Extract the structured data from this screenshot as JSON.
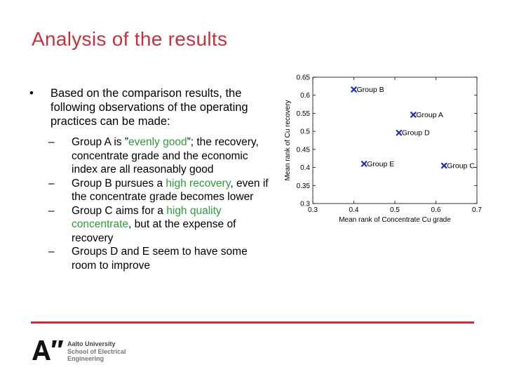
{
  "slide": {
    "title": "Analysis of the results",
    "bullet": {
      "symbol": "•",
      "text": "Based on the comparison results, the following observations of the operating practices can be made:"
    },
    "sub_items": [
      {
        "dash": "–",
        "before": "Group A is ”",
        "highlight": "evenly good",
        "after": "”; the recovery, concentrate grade and the economic index are all reasonably good"
      },
      {
        "dash": "–",
        "before": "Group B pursues a ",
        "highlight": "high recovery",
        "after": ", even if the concentrate grade becomes lower"
      },
      {
        "dash": "–",
        "before": "Group C aims for a ",
        "highlight": "high quality concentrate",
        "after": ", but at the expense of recovery"
      },
      {
        "dash": "–",
        "before": "Groups D and E seem to have some room to improve",
        "highlight": "",
        "after": ""
      }
    ],
    "colors": {
      "title": "#c8313c",
      "highlight": "#2e9b3a",
      "divider": "#c8313c",
      "marker": "#1f2fb5"
    }
  },
  "chart_data": {
    "type": "scatter",
    "xlabel": "Mean rank of Concentrate Cu grade",
    "ylabel": "Mean rank of Cu recovery",
    "xlim": [
      0.3,
      0.7
    ],
    "ylim": [
      0.3,
      0.65
    ],
    "xticks": [
      "0.3",
      "0.4",
      "0.5",
      "0.6",
      "0.7"
    ],
    "yticks": [
      "0.3",
      "0.35",
      "0.4",
      "0.45",
      "0.5",
      "0.55",
      "0.6",
      "0.65"
    ],
    "points": [
      {
        "label": "Group B",
        "x": 0.4,
        "y": 0.616
      },
      {
        "label": "Group A",
        "x": 0.545,
        "y": 0.546
      },
      {
        "label": "Group D",
        "x": 0.51,
        "y": 0.496
      },
      {
        "label": "Group E",
        "x": 0.425,
        "y": 0.41
      },
      {
        "label": "Group C",
        "x": 0.62,
        "y": 0.405
      }
    ],
    "grid": false,
    "marker_color": "#1f2fb5"
  },
  "logo": {
    "mark": "A”",
    "line1": "Aalto University",
    "line2": "School of Electrical",
    "line3": "Engineering"
  }
}
